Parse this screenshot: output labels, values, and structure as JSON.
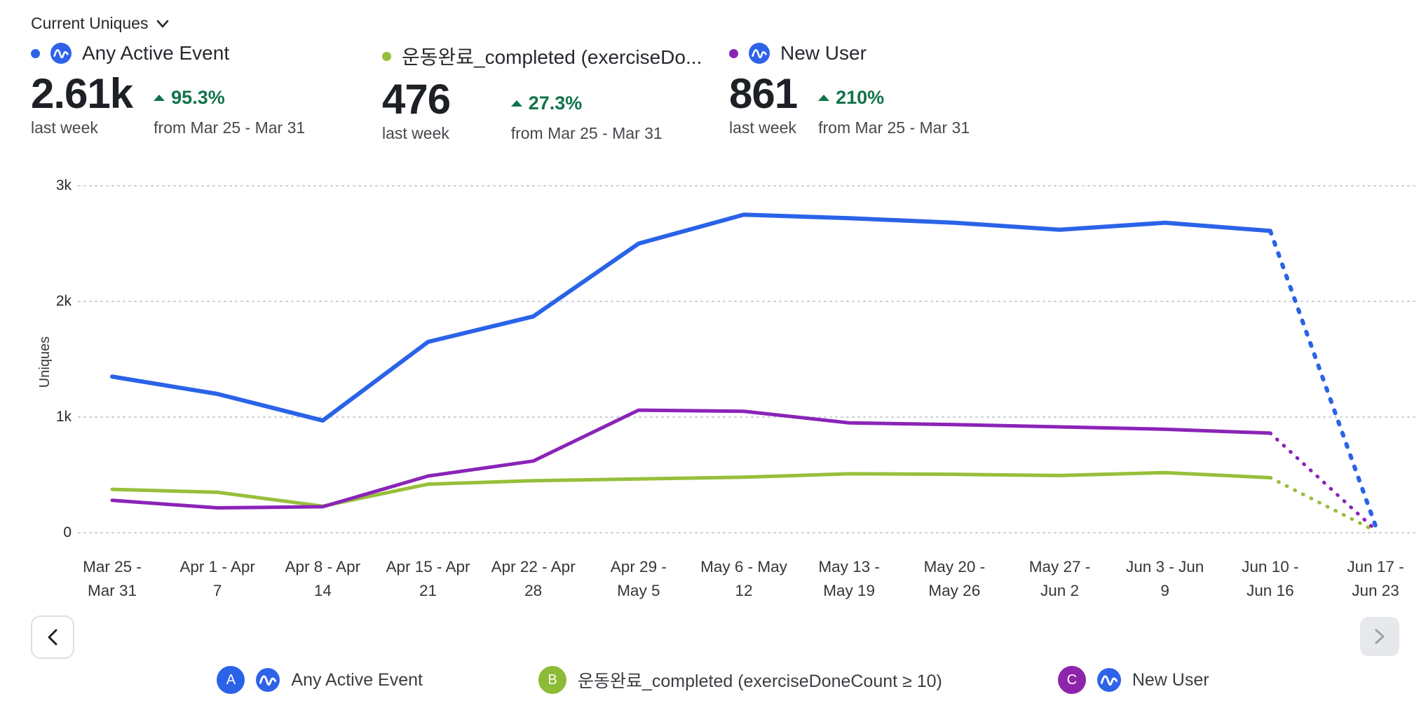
{
  "header": {
    "metric_selector_label": "Current Uniques"
  },
  "metrics": [
    {
      "label": "Any Active Event",
      "value": "2.61k",
      "delta": "95.3%",
      "period": "last week",
      "compare": "from Mar 25 - Mar 31",
      "color": "#2A63E8"
    },
    {
      "label": "운동완료_completed (exerciseDo...",
      "value": "476",
      "delta": "27.3%",
      "period": "last week",
      "compare": "from Mar 25 - Mar 31",
      "color": "#97BF3A"
    },
    {
      "label": "New User",
      "value": "861",
      "delta": "210%",
      "period": "last week",
      "compare": "from Mar 25 - Mar 31",
      "color": "#8A24B8"
    }
  ],
  "chart_data": {
    "type": "line",
    "ylabel": "Uniques",
    "ylim": [
      0,
      3000
    ],
    "grid": "dotted-horizontal",
    "last_interval_dotted": true,
    "y_ticks": [
      {
        "label": "3k",
        "value": 3000
      },
      {
        "label": "2k",
        "value": 2000
      },
      {
        "label": "1k",
        "value": 1000
      },
      {
        "label": "0",
        "value": 0
      }
    ],
    "categories": [
      [
        "Mar 25 -",
        "Mar 31"
      ],
      [
        "Apr 1 - Apr",
        "7"
      ],
      [
        "Apr 8 - Apr",
        "14"
      ],
      [
        "Apr 15 - Apr",
        "21"
      ],
      [
        "Apr 22 - Apr",
        "28"
      ],
      [
        "Apr 29 -",
        "May 5"
      ],
      [
        "May 6 - May",
        "12"
      ],
      [
        "May 13 -",
        "May 19"
      ],
      [
        "May 20 -",
        "May 26"
      ],
      [
        "May 27 -",
        "Jun 2"
      ],
      [
        "Jun 3 - Jun",
        "9"
      ],
      [
        "Jun 10 -",
        "Jun 16"
      ],
      [
        "Jun 17 -",
        "Jun 23"
      ]
    ],
    "series": [
      {
        "name": "Any Active Event",
        "color": "#2A63E8",
        "width": 6,
        "dash": "4 13",
        "values": [
          1350,
          1200,
          970,
          1650,
          1870,
          2500,
          2750,
          2720,
          2680,
          2620,
          2680,
          2610,
          60
        ]
      },
      {
        "name": "운동완료_completed (exerciseDoneCount ≥ 10)",
        "color": "#97BF3A",
        "width": 5,
        "dash": "1 12",
        "values": [
          375,
          350,
          230,
          420,
          450,
          465,
          480,
          510,
          505,
          495,
          520,
          476,
          15
        ]
      },
      {
        "name": "New User",
        "color": "#8A24B8",
        "width": 5,
        "dash": "1 12",
        "values": [
          280,
          215,
          225,
          490,
          620,
          1060,
          1050,
          950,
          935,
          915,
          895,
          861,
          25
        ]
      }
    ]
  },
  "legend": {
    "items": [
      {
        "letter": "A",
        "badge_color": "#2A63E8",
        "has_event_icon": true,
        "label": "Any Active Event"
      },
      {
        "letter": "B",
        "badge_color": "#8CBB36",
        "has_event_icon": false,
        "label": "운동완료_completed (exerciseDoneCount ≥ 10)"
      },
      {
        "letter": "C",
        "badge_color": "#8E24AA",
        "has_event_icon": true,
        "label": "New User"
      }
    ]
  }
}
